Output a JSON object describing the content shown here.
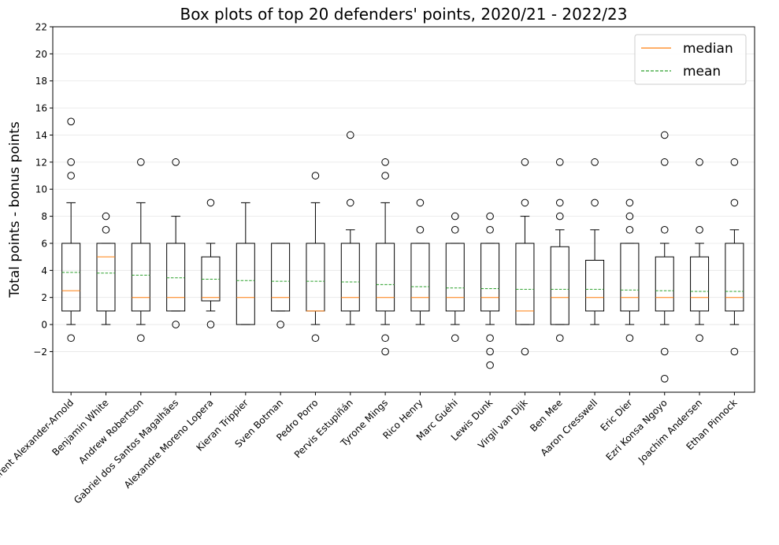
{
  "chart_data": {
    "type": "box",
    "title": "Box plots of top 20 defenders' points, 2020/21 - 2022/23",
    "xlabel": "",
    "ylabel": "Total points - bonus points",
    "ylim": [
      -5,
      22
    ],
    "yticks": [
      -2,
      0,
      2,
      4,
      6,
      8,
      10,
      12,
      14,
      16,
      18,
      20,
      22
    ],
    "ytick_labels": [
      "−2",
      "0",
      "2",
      "4",
      "6",
      "8",
      "10",
      "12",
      "14",
      "16",
      "18",
      "20",
      "22"
    ],
    "grid": "horizontal",
    "legend": {
      "placement": "top-right",
      "entries": [
        {
          "label": "median",
          "color": "#ff7f0e",
          "style": "solid"
        },
        {
          "label": "mean",
          "color": "#2ca02c",
          "style": "dashed"
        }
      ]
    },
    "colors": {
      "box": "#000000",
      "median": "#ff7f0e",
      "mean": "#2ca02c",
      "grid": "#e6e6e6"
    },
    "categories": [
      "Trent Alexander-Arnold",
      "Benjamin White",
      "Andrew Robertson",
      "Gabriel dos Santos Magalhães",
      "Alexandre Moreno Lopera",
      "Kieran Trippier",
      "Sven Botman",
      "Pedro Porro",
      "Pervis Estupiñán",
      "Tyrone Mings",
      "Rico Henry",
      "Marc Guéhi",
      "Lewis Dunk",
      "Virgil van Dijk",
      "Ben Mee",
      "Aaron Cresswell",
      "Eric Dier",
      "Ezri Konsa Ngoyo",
      "Joachim Andersen",
      "Ethan Pinnock"
    ],
    "boxes": [
      {
        "whislo": 0,
        "q1": 1,
        "med": 2.5,
        "q3": 6,
        "whishi": 9,
        "mean": 3.85,
        "fliers": [
          -1,
          11,
          12,
          15
        ]
      },
      {
        "whislo": 0,
        "q1": 1,
        "med": 5,
        "q3": 6,
        "whishi": 6,
        "mean": 3.8,
        "fliers": [
          7,
          8
        ]
      },
      {
        "whislo": 0,
        "q1": 1,
        "med": 2,
        "q3": 6,
        "whishi": 9,
        "mean": 3.65,
        "fliers": [
          -1,
          12
        ]
      },
      {
        "whislo": 1,
        "q1": 1,
        "med": 2,
        "q3": 6,
        "whishi": 8,
        "mean": 3.45,
        "fliers": [
          0,
          12
        ]
      },
      {
        "whislo": 1,
        "q1": 1.75,
        "med": 2,
        "q3": 5,
        "whishi": 6,
        "mean": 3.35,
        "fliers": [
          0,
          9
        ]
      },
      {
        "whislo": 0,
        "q1": 0,
        "med": 2,
        "q3": 6,
        "whishi": 9,
        "mean": 3.25,
        "fliers": []
      },
      {
        "whislo": 1,
        "q1": 1,
        "med": 2,
        "q3": 6,
        "whishi": 6,
        "mean": 3.2,
        "fliers": [
          0
        ]
      },
      {
        "whislo": 0,
        "q1": 1,
        "med": 1,
        "q3": 6,
        "whishi": 9,
        "mean": 3.2,
        "fliers": [
          -1,
          11
        ]
      },
      {
        "whislo": 0,
        "q1": 1,
        "med": 2,
        "q3": 6,
        "whishi": 7,
        "mean": 3.15,
        "fliers": [
          9,
          14
        ]
      },
      {
        "whislo": 0,
        "q1": 1,
        "med": 2,
        "q3": 6,
        "whishi": 9,
        "mean": 2.95,
        "fliers": [
          -2,
          -1,
          11,
          12
        ]
      },
      {
        "whislo": 0,
        "q1": 1,
        "med": 2,
        "q3": 6,
        "whishi": 6,
        "mean": 2.8,
        "fliers": [
          7,
          9
        ]
      },
      {
        "whislo": 0,
        "q1": 1,
        "med": 2,
        "q3": 6,
        "whishi": 6,
        "mean": 2.7,
        "fliers": [
          -1,
          7,
          8
        ]
      },
      {
        "whislo": 0,
        "q1": 1,
        "med": 2,
        "q3": 6,
        "whishi": 6,
        "mean": 2.65,
        "fliers": [
          -3,
          -2,
          -1,
          7,
          8
        ]
      },
      {
        "whislo": 0,
        "q1": 0,
        "med": 1,
        "q3": 6,
        "whishi": 8,
        "mean": 2.6,
        "fliers": [
          -2,
          9,
          12
        ]
      },
      {
        "whislo": 0,
        "q1": 0,
        "med": 2,
        "q3": 5.75,
        "whishi": 7,
        "mean": 2.6,
        "fliers": [
          -1,
          8,
          9,
          12
        ]
      },
      {
        "whislo": 0,
        "q1": 1,
        "med": 2,
        "q3": 4.75,
        "whishi": 7,
        "mean": 2.6,
        "fliers": [
          9,
          12
        ]
      },
      {
        "whislo": 0,
        "q1": 1,
        "med": 2,
        "q3": 6,
        "whishi": 6,
        "mean": 2.55,
        "fliers": [
          -1,
          7,
          8,
          9
        ]
      },
      {
        "whislo": 0,
        "q1": 1,
        "med": 2,
        "q3": 5,
        "whishi": 6,
        "mean": 2.5,
        "fliers": [
          -4,
          -2,
          7,
          12,
          14
        ]
      },
      {
        "whislo": 0,
        "q1": 1,
        "med": 2,
        "q3": 5,
        "whishi": 6,
        "mean": 2.45,
        "fliers": [
          -1,
          7,
          12
        ]
      },
      {
        "whislo": 0,
        "q1": 1,
        "med": 2,
        "q3": 6,
        "whishi": 7,
        "mean": 2.45,
        "fliers": [
          -2,
          9,
          12
        ]
      }
    ]
  }
}
